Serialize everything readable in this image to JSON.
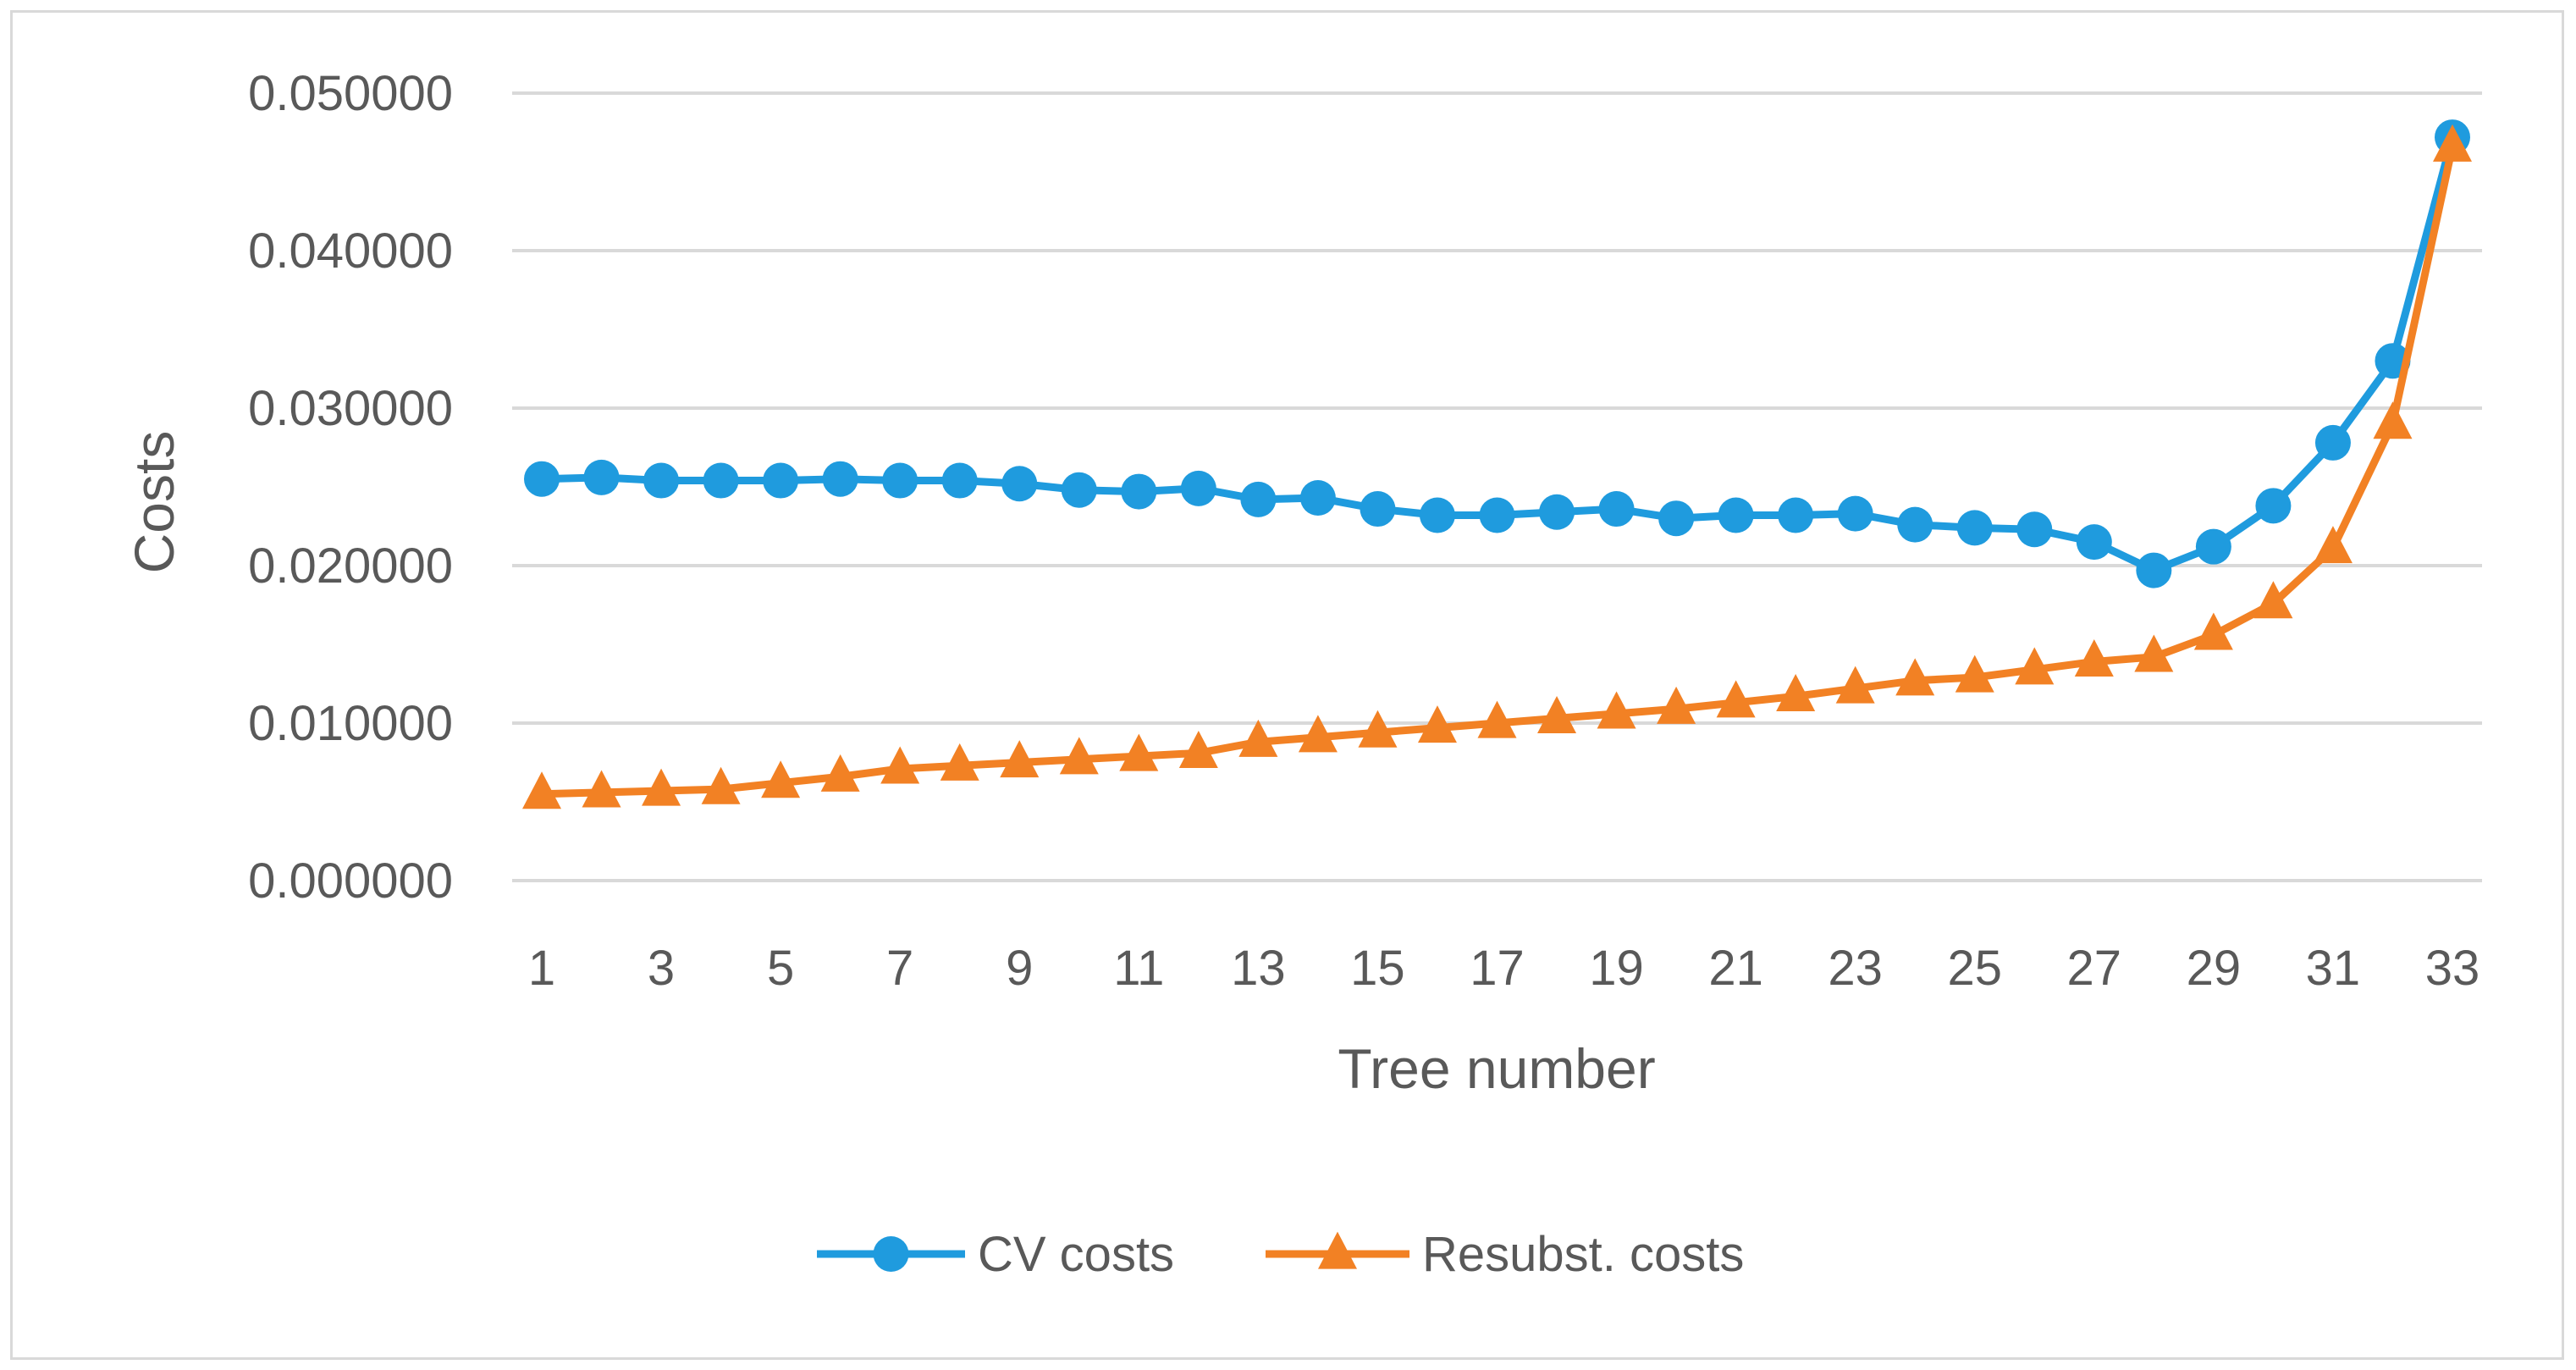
{
  "chart_data": {
    "type": "line",
    "title": "",
    "xlabel": "Tree number",
    "ylabel": "Costs",
    "x": [
      1,
      2,
      3,
      4,
      5,
      6,
      7,
      8,
      9,
      10,
      11,
      12,
      13,
      14,
      15,
      16,
      17,
      18,
      19,
      20,
      21,
      22,
      23,
      24,
      25,
      26,
      27,
      28,
      29,
      30,
      31,
      32,
      33
    ],
    "x_tick_labels": [
      "1",
      "3",
      "5",
      "7",
      "9",
      "11",
      "13",
      "15",
      "17",
      "19",
      "21",
      "23",
      "25",
      "27",
      "29",
      "31",
      "33"
    ],
    "y_tick_labels": [
      "0.000000",
      "0.010000",
      "0.020000",
      "0.030000",
      "0.040000",
      "0.050000"
    ],
    "ylim": [
      0,
      0.05
    ],
    "grid": true,
    "legend": "bottom-center",
    "series": [
      {
        "name": "CV costs",
        "color": "#1F9BDE",
        "marker": "circle",
        "values": [
          0.0255,
          0.0256,
          0.0254,
          0.0254,
          0.0254,
          0.0255,
          0.0254,
          0.0254,
          0.0252,
          0.0248,
          0.0247,
          0.0249,
          0.0242,
          0.0243,
          0.0236,
          0.0232,
          0.0232,
          0.0234,
          0.0236,
          0.023,
          0.0232,
          0.0232,
          0.0233,
          0.0226,
          0.0224,
          0.0223,
          0.0215,
          0.0197,
          0.0212,
          0.0238,
          0.0278,
          0.033,
          0.0472
        ]
      },
      {
        "name": "Resubst. costs",
        "color": "#F28124",
        "marker": "triangle",
        "values": [
          0.0055,
          0.0056,
          0.0057,
          0.0058,
          0.0062,
          0.0066,
          0.0071,
          0.0073,
          0.0075,
          0.0077,
          0.0079,
          0.0081,
          0.0088,
          0.0091,
          0.0094,
          0.0097,
          0.01,
          0.0103,
          0.0106,
          0.0109,
          0.0113,
          0.0117,
          0.0122,
          0.0127,
          0.0129,
          0.0134,
          0.0139,
          0.0142,
          0.0156,
          0.0176,
          0.0211,
          0.029,
          0.0466
        ]
      }
    ]
  }
}
